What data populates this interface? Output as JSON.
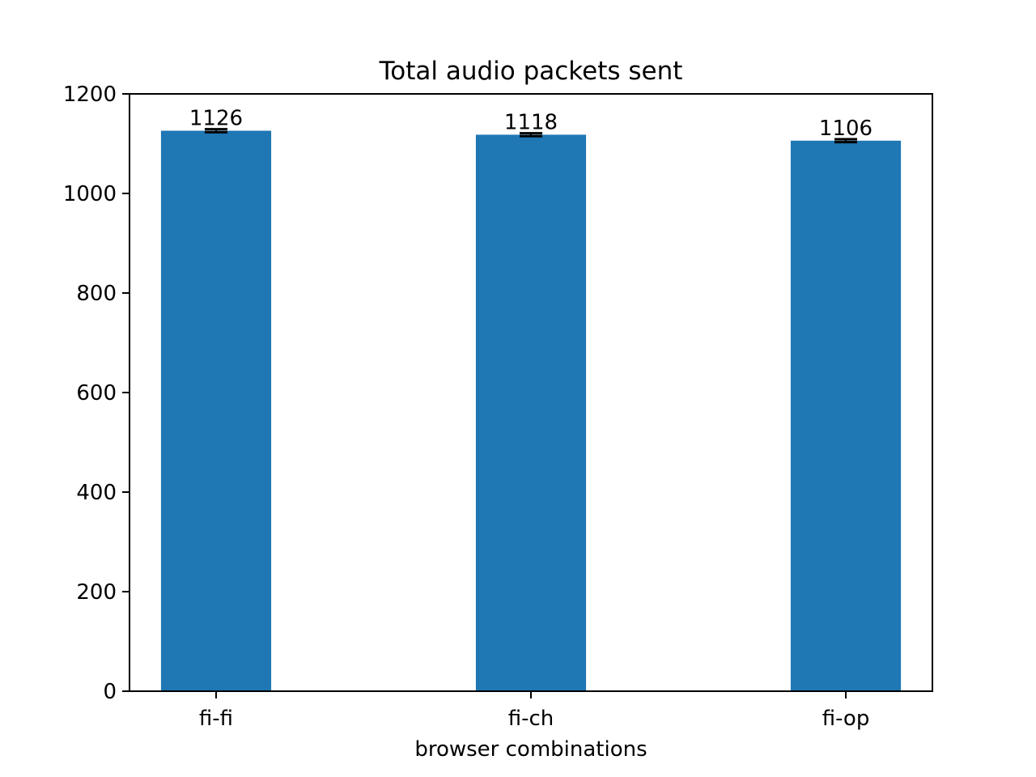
{
  "chart_data": {
    "type": "bar",
    "title": "Total audio packets sent",
    "xlabel": "browser combinations",
    "ylabel": "",
    "categories": [
      "fi-fi",
      "fi-ch",
      "fi-op"
    ],
    "values": [
      1126,
      1118,
      1106
    ],
    "data_labels": [
      "1126",
      "1118",
      "1106"
    ],
    "error": [
      3,
      3,
      3
    ],
    "ylim": [
      0,
      1200
    ],
    "yticks": [
      0,
      200,
      400,
      600,
      800,
      1000,
      1200
    ],
    "ytick_labels": [
      "0",
      "200",
      "400",
      "600",
      "800",
      "1000",
      "1200"
    ],
    "grid": false,
    "legend": "none",
    "bar_color": "#1f77b4",
    "error_color": "#000000"
  }
}
